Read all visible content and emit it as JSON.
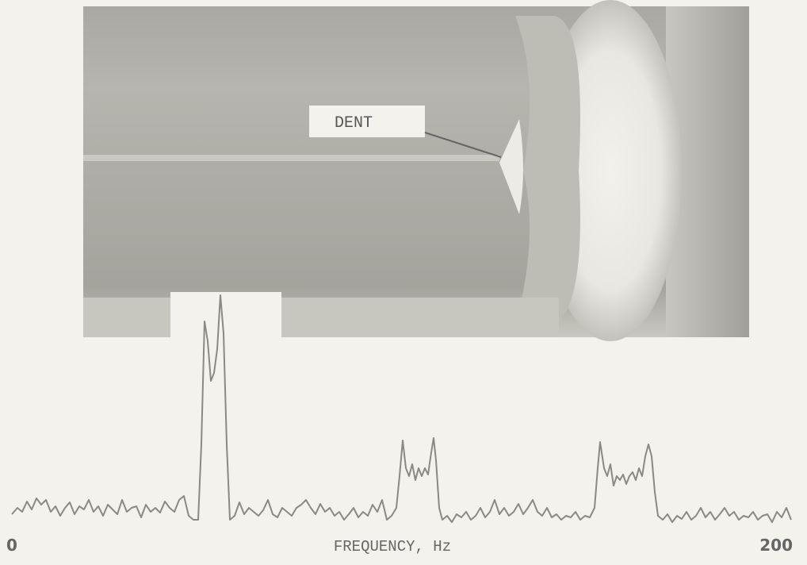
{
  "figure": {
    "photo": {
      "label": "DENT"
    },
    "spectrum": {
      "x_axis": {
        "label": "FREQUENCY, Hz",
        "ticks": [
          "0",
          "200"
        ]
      }
    }
  }
}
